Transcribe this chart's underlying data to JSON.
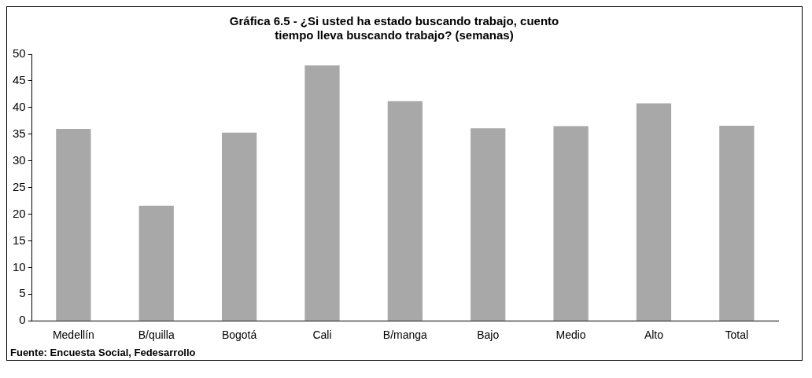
{
  "chart_data": {
    "type": "bar",
    "title": "Gráfica 6.5 - ¿Si usted ha estado buscando trabajo, cuento tiempo lleva buscando trabajo? (semanas)",
    "categories": [
      "Medellín",
      "B/quilla",
      "Bogotá",
      "Cali",
      "B/manga",
      "Bajo",
      "Medio",
      "Alto",
      "Total"
    ],
    "values": [
      36.0,
      21.6,
      35.3,
      47.9,
      41.2,
      36.1,
      36.5,
      40.8,
      36.6
    ],
    "color": "#a8a8a8",
    "ylim": [
      0,
      50
    ],
    "yticks": [
      0,
      5,
      10,
      15,
      20,
      25,
      30,
      35,
      40,
      45,
      50
    ],
    "grid": false,
    "annotations": [
      "Fuente: Encuesta Social, Fedesarrollo"
    ]
  }
}
